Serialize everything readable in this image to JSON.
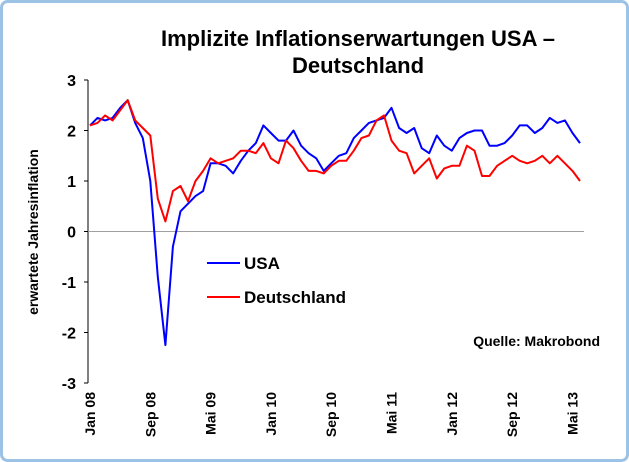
{
  "chart_data": {
    "type": "line",
    "title": [
      "Implizite Inflationserwartungen USA –",
      "Deutschland"
    ],
    "y_label": "erwartete Jahresinflation",
    "annotation": "Quelle: Makrobond",
    "categories": [
      "Jan 08",
      null,
      null,
      null,
      null,
      null,
      null,
      null,
      "Sep 08",
      null,
      null,
      null,
      null,
      null,
      null,
      null,
      "Mai 09",
      null,
      null,
      null,
      null,
      null,
      null,
      null,
      "Jan 10",
      null,
      null,
      null,
      null,
      null,
      null,
      null,
      "Sep 10",
      null,
      null,
      null,
      null,
      null,
      null,
      null,
      "Mai 11",
      null,
      null,
      null,
      null,
      null,
      null,
      null,
      "Jan 12",
      null,
      null,
      null,
      null,
      null,
      null,
      null,
      "Sep 12",
      null,
      null,
      null,
      null,
      null,
      null,
      null,
      "Mai 13",
      null
    ],
    "series": [
      {
        "name": "USA",
        "color": "#0000ff",
        "values": [
          2.1,
          2.25,
          2.2,
          2.25,
          2.45,
          2.6,
          2.15,
          1.85,
          1.0,
          -0.9,
          -2.25,
          -0.3,
          0.4,
          0.55,
          0.7,
          0.8,
          1.35,
          1.35,
          1.3,
          1.15,
          1.4,
          1.6,
          1.75,
          2.1,
          1.95,
          1.8,
          1.8,
          2.0,
          1.7,
          1.55,
          1.45,
          1.2,
          1.35,
          1.5,
          1.55,
          1.85,
          2.0,
          2.15,
          2.2,
          2.25,
          2.45,
          2.05,
          1.95,
          2.05,
          1.65,
          1.55,
          1.9,
          1.7,
          1.6,
          1.85,
          1.95,
          2.0,
          2.0,
          1.7,
          1.7,
          1.75,
          1.9,
          2.1,
          2.1,
          1.95,
          2.05,
          2.25,
          2.15,
          2.2,
          1.95,
          1.75
        ]
      },
      {
        "name": "Deutschland",
        "color": "#ff0000",
        "values": [
          2.1,
          2.15,
          2.3,
          2.2,
          2.4,
          2.6,
          2.2,
          2.05,
          1.9,
          0.65,
          0.2,
          0.8,
          0.9,
          0.6,
          1.0,
          1.2,
          1.45,
          1.35,
          1.4,
          1.45,
          1.6,
          1.6,
          1.55,
          1.75,
          1.45,
          1.35,
          1.8,
          1.65,
          1.4,
          1.2,
          1.2,
          1.15,
          1.3,
          1.4,
          1.4,
          1.6,
          1.85,
          1.9,
          2.2,
          2.3,
          1.8,
          1.6,
          1.55,
          1.15,
          1.3,
          1.45,
          1.05,
          1.25,
          1.3,
          1.3,
          1.7,
          1.6,
          1.1,
          1.1,
          1.3,
          1.4,
          1.5,
          1.4,
          1.35,
          1.4,
          1.5,
          1.35,
          1.5,
          1.35,
          1.2,
          1.0
        ]
      }
    ],
    "ylim": [
      -3,
      3
    ],
    "yticks": [
      -3,
      -2,
      -1,
      0,
      1,
      2,
      3
    ],
    "zero_line": true
  }
}
